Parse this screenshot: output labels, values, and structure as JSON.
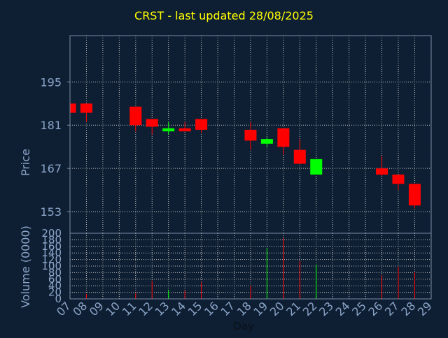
{
  "chart_data": {
    "type": "candlestick",
    "title": "CRST - last updated 28/08/2025",
    "price_axis": {
      "label": "Price",
      "range": [
        146,
        210
      ],
      "ticks": [
        153,
        167,
        181,
        195
      ]
    },
    "volume_axis": {
      "label": "Volume (0000)",
      "range": [
        0,
        200
      ],
      "ticks": [
        0,
        20,
        40,
        60,
        80,
        100,
        120,
        140,
        160,
        180,
        200
      ]
    },
    "x_axis": {
      "label": "Day",
      "ticks": [
        "07",
        "08",
        "09",
        "10",
        "11",
        "12",
        "13",
        "14",
        "15",
        "16",
        "17",
        "18",
        "19",
        "20",
        "21",
        "22",
        "23",
        "24",
        "25",
        "26",
        "27",
        "28",
        "29"
      ]
    },
    "grid": true,
    "colors": {
      "background": "#0f1f33",
      "title": "#ffff00",
      "text": "#8aa4c8",
      "axis": "#7a8aa0",
      "grid": "#c0c0c0",
      "up": "#00ff00",
      "down": "#ff0000"
    },
    "candles": [
      {
        "day": "07",
        "open": 188,
        "high": 188,
        "low": 185,
        "close": 185
      },
      {
        "day": "08",
        "open": 188,
        "high": 188,
        "low": 182,
        "close": 185,
        "volume": 15
      },
      {
        "day": "11",
        "open": 187,
        "high": 187,
        "low": 179,
        "close": 181,
        "volume": 18
      },
      {
        "day": "12",
        "open": 183,
        "high": 183,
        "low": 178,
        "close": 180.5,
        "volume": 55
      },
      {
        "day": "13",
        "open": 179,
        "high": 182,
        "low": 178,
        "close": 180,
        "volume": 28
      },
      {
        "day": "14",
        "open": 180,
        "high": 182,
        "low": 179,
        "close": 179,
        "volume": 25
      },
      {
        "day": "15",
        "open": 183,
        "high": 183,
        "low": 178.5,
        "close": 179.5,
        "volume": 52
      },
      {
        "day": "18",
        "open": 179.5,
        "high": 182,
        "low": 173,
        "close": 176,
        "volume": 40
      },
      {
        "day": "19",
        "open": 175,
        "high": 177,
        "low": 174,
        "close": 176.5,
        "volume": 155
      },
      {
        "day": "20",
        "open": 180,
        "high": 180,
        "low": 171.5,
        "close": 174,
        "volume": 185
      },
      {
        "day": "21",
        "open": 173,
        "high": 176.5,
        "low": 168.5,
        "close": 168.5,
        "volume": 115
      },
      {
        "day": "22",
        "open": 165,
        "high": 170,
        "low": 165,
        "close": 170,
        "volume": 105
      },
      {
        "day": "26",
        "open": 167,
        "high": 171,
        "low": 164.5,
        "close": 165,
        "volume": 72
      },
      {
        "day": "27",
        "open": 165,
        "high": 165,
        "low": 160,
        "close": 162,
        "volume": 98
      },
      {
        "day": "28",
        "open": 162,
        "high": 162,
        "low": 154,
        "close": 155,
        "volume": 82
      }
    ]
  }
}
